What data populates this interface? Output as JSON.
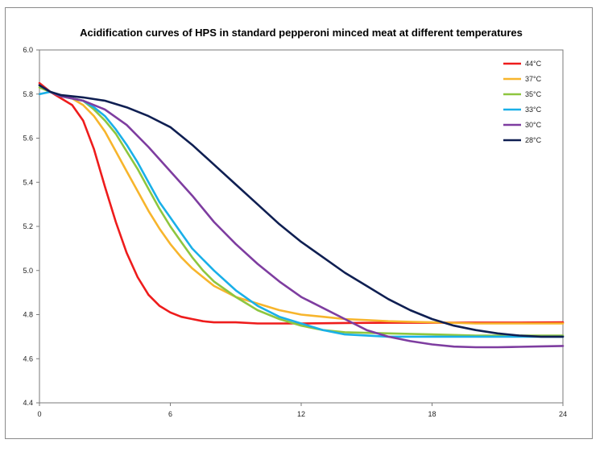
{
  "chart_data": {
    "type": "line",
    "title": "Acidification curves of HPS in standard pepperoni minced meat at different temperatures",
    "xlabel": "",
    "ylabel": "",
    "xlim": [
      0,
      24
    ],
    "ylim": [
      4.4,
      6.0
    ],
    "xticks": [
      "0",
      "6",
      "12",
      "18",
      "24"
    ],
    "yticks": [
      "4.4",
      "4.6",
      "4.8",
      "5.0",
      "5.2",
      "5.4",
      "5.6",
      "5.8",
      "6.0"
    ],
    "legend_position": "top-right",
    "series": [
      {
        "name": "44°C",
        "color": "#ee1c1c",
        "x": [
          0,
          0.5,
          1,
          1.5,
          2,
          2.5,
          3,
          3.5,
          4,
          4.5,
          5,
          5.5,
          6,
          6.5,
          7,
          7.5,
          8,
          9,
          10,
          11,
          12,
          14,
          16,
          18,
          20,
          22,
          24
        ],
        "y": [
          5.85,
          5.81,
          5.78,
          5.75,
          5.68,
          5.55,
          5.38,
          5.22,
          5.08,
          4.97,
          4.89,
          4.84,
          4.81,
          4.79,
          4.78,
          4.77,
          4.765,
          4.765,
          4.76,
          4.76,
          4.76,
          4.762,
          4.763,
          4.763,
          4.764,
          4.764,
          4.765
        ]
      },
      {
        "name": "37°C",
        "color": "#f7b52c",
        "x": [
          0,
          0.5,
          1,
          1.5,
          2,
          2.5,
          3,
          3.5,
          4,
          4.5,
          5,
          5.5,
          6,
          6.5,
          7,
          7.5,
          8,
          9,
          10,
          11,
          12,
          13,
          14,
          15,
          16,
          18,
          20,
          22,
          24
        ],
        "y": [
          5.84,
          5.81,
          5.79,
          5.78,
          5.75,
          5.7,
          5.63,
          5.54,
          5.45,
          5.36,
          5.27,
          5.19,
          5.12,
          5.06,
          5.01,
          4.97,
          4.93,
          4.88,
          4.85,
          4.82,
          4.8,
          4.79,
          4.78,
          4.775,
          4.77,
          4.765,
          4.76,
          4.76,
          4.76
        ]
      },
      {
        "name": "35°C",
        "color": "#8ec63f",
        "x": [
          0,
          0.5,
          1,
          1.5,
          2,
          2.5,
          3,
          3.5,
          4,
          4.5,
          5,
          5.5,
          6,
          6.5,
          7,
          7.5,
          8,
          9,
          10,
          11,
          12,
          13,
          14,
          16,
          18,
          20,
          22,
          24
        ],
        "y": [
          5.83,
          5.81,
          5.79,
          5.78,
          5.77,
          5.73,
          5.68,
          5.62,
          5.54,
          5.46,
          5.37,
          5.28,
          5.2,
          5.13,
          5.06,
          5.0,
          4.95,
          4.88,
          4.82,
          4.78,
          4.75,
          4.73,
          4.72,
          4.715,
          4.71,
          4.705,
          4.705,
          4.705
        ]
      },
      {
        "name": "33°C",
        "color": "#1ab0e8",
        "x": [
          0,
          0.5,
          1,
          1.5,
          2,
          2.5,
          3,
          3.5,
          4,
          4.5,
          5,
          5.5,
          6,
          6.5,
          7,
          7.5,
          8,
          9,
          10,
          11,
          12,
          13,
          14,
          16,
          18,
          20,
          22,
          24
        ],
        "y": [
          5.8,
          5.81,
          5.79,
          5.78,
          5.77,
          5.74,
          5.7,
          5.64,
          5.57,
          5.49,
          5.4,
          5.31,
          5.24,
          5.17,
          5.1,
          5.05,
          5.0,
          4.91,
          4.84,
          4.79,
          4.76,
          4.73,
          4.71,
          4.7,
          4.7,
          4.7,
          4.7,
          4.7
        ]
      },
      {
        "name": "30°C",
        "color": "#7e3da0",
        "x": [
          0,
          0.5,
          1,
          1.5,
          2,
          3,
          4,
          5,
          6,
          7,
          8,
          9,
          10,
          11,
          12,
          13,
          14,
          15,
          16,
          17,
          18,
          19,
          20,
          21,
          22,
          23,
          24
        ],
        "y": [
          5.84,
          5.81,
          5.79,
          5.78,
          5.77,
          5.73,
          5.66,
          5.56,
          5.45,
          5.34,
          5.22,
          5.12,
          5.03,
          4.95,
          4.88,
          4.83,
          4.78,
          4.73,
          4.7,
          4.68,
          4.665,
          4.655,
          4.652,
          4.652,
          4.654,
          4.656,
          4.658
        ]
      },
      {
        "name": "28°C",
        "color": "#0f1f52",
        "x": [
          0,
          0.5,
          1,
          2,
          3,
          4,
          5,
          6,
          7,
          8,
          9,
          10,
          11,
          12,
          13,
          14,
          15,
          16,
          17,
          18,
          19,
          20,
          21,
          22,
          23,
          24
        ],
        "y": [
          5.84,
          5.81,
          5.795,
          5.785,
          5.77,
          5.74,
          5.7,
          5.65,
          5.57,
          5.48,
          5.39,
          5.3,
          5.21,
          5.13,
          5.06,
          4.99,
          4.93,
          4.87,
          4.82,
          4.78,
          4.75,
          4.73,
          4.715,
          4.705,
          4.7,
          4.7
        ]
      }
    ]
  }
}
